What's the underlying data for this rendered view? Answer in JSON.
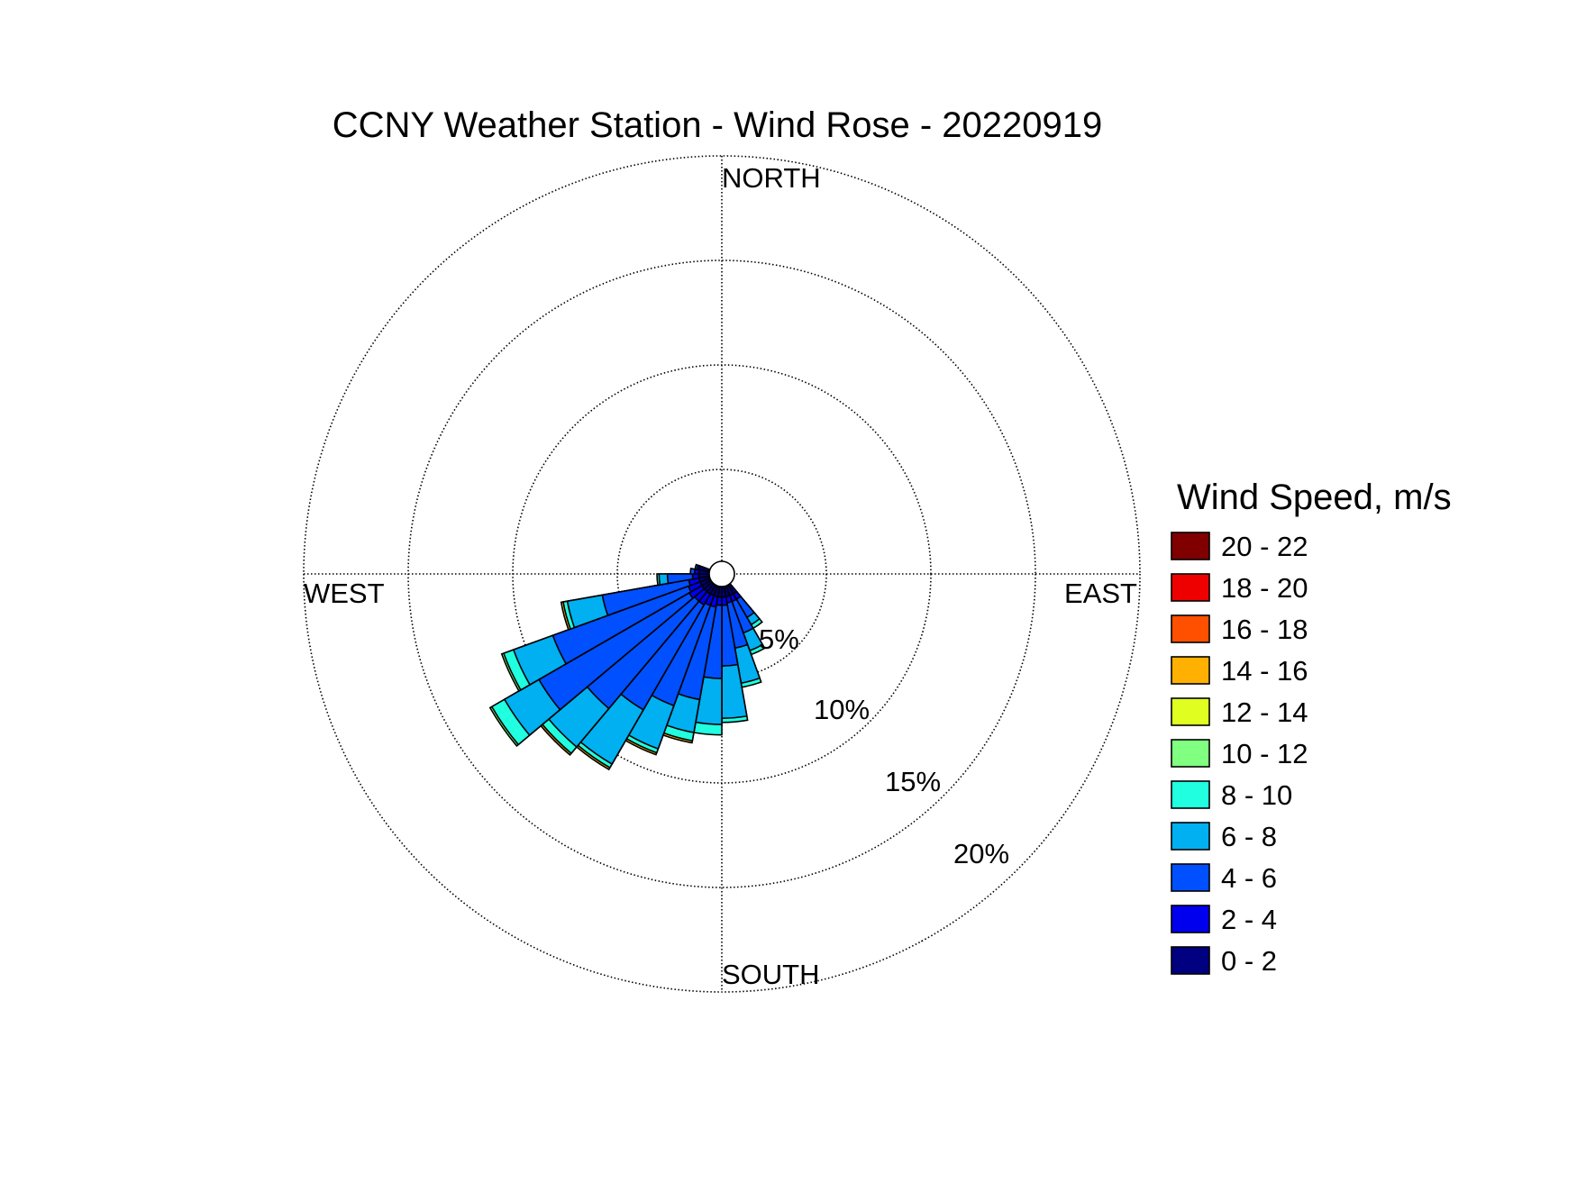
{
  "chart_data": {
    "type": "wind-rose",
    "title": "CCNY Weather Station - Wind Rose - 20220919",
    "directions": {
      "north": "NORTH",
      "east": "EAST",
      "south": "SOUTH",
      "west": "WEST"
    },
    "radial_ticks": [
      {
        "value": 5,
        "label": "5%"
      },
      {
        "value": 10,
        "label": "10%"
      },
      {
        "value": 15,
        "label": "15%"
      },
      {
        "value": 20,
        "label": "20%"
      }
    ],
    "rmax": 20,
    "legend": {
      "title": "Wind Speed, m/s",
      "bins": [
        {
          "label": "20 - 22",
          "color": "#800000"
        },
        {
          "label": "18 - 20",
          "color": "#ee0000"
        },
        {
          "label": "16 - 18",
          "color": "#ff5000"
        },
        {
          "label": "14 - 16",
          "color": "#ffb000"
        },
        {
          "label": "12 - 14",
          "color": "#e0ff20"
        },
        {
          "label": "10 - 12",
          "color": "#80ff80"
        },
        {
          "label": "8 - 10",
          "color": "#20ffe0"
        },
        {
          "label": "6 - 8",
          "color": "#00b0f0"
        },
        {
          "label": "4 - 6",
          "color": "#0050ff"
        },
        {
          "label": "2 - 4",
          "color": "#0000ee"
        },
        {
          "label": "0 - 2",
          "color": "#000080"
        }
      ]
    },
    "sector_width_deg": 10,
    "sectors": [
      {
        "direction_deg": 145,
        "cumulative": [
          0.5,
          0.8,
          1.8,
          2.2,
          2.4,
          2.4,
          2.4,
          2.4,
          2.4,
          2.4,
          2.4
        ]
      },
      {
        "direction_deg": 155,
        "cumulative": [
          0.5,
          0.8,
          2.4,
          3.3,
          3.5,
          3.5,
          3.5,
          3.5,
          3.5,
          3.5,
          3.5
        ]
      },
      {
        "direction_deg": 165,
        "cumulative": [
          0.5,
          0.8,
          3.0,
          4.7,
          4.9,
          4.9,
          4.9,
          4.9,
          4.9,
          4.9,
          4.9
        ]
      },
      {
        "direction_deg": 175,
        "cumulative": [
          0.5,
          0.9,
          3.8,
          6.3,
          6.5,
          6.5,
          6.5,
          6.5,
          6.5,
          6.5,
          6.5
        ]
      },
      {
        "direction_deg": 185,
        "cumulative": [
          0.5,
          0.9,
          4.4,
          6.6,
          7.1,
          7.1,
          7.1,
          7.1,
          7.1,
          7.1,
          7.1
        ]
      },
      {
        "direction_deg": 195,
        "cumulative": [
          0.5,
          1.0,
          5.5,
          7.1,
          7.5,
          7.5,
          7.5,
          7.6,
          7.6,
          7.6,
          7.6
        ]
      },
      {
        "direction_deg": 205,
        "cumulative": [
          0.5,
          1.0,
          6.1,
          8.3,
          8.5,
          8.5,
          8.5,
          8.6,
          8.6,
          8.6,
          8.6
        ]
      },
      {
        "direction_deg": 215,
        "cumulative": [
          0.5,
          1.1,
          6.9,
          9.9,
          10.1,
          10.1,
          10.1,
          10.2,
          10.2,
          10.2,
          10.2
        ]
      },
      {
        "direction_deg": 225,
        "cumulative": [
          0.5,
          1.1,
          7.8,
          10.2,
          10.6,
          10.6,
          10.6,
          10.7,
          10.7,
          10.7,
          10.7
        ]
      },
      {
        "direction_deg": 235,
        "cumulative": [
          0.5,
          1.2,
          9.5,
          11.4,
          12.1,
          12.2,
          12.2,
          12.2,
          12.2,
          12.2,
          12.2
        ]
      },
      {
        "direction_deg": 245,
        "cumulative": [
          0.5,
          1.1,
          8.0,
          10.0,
          10.5,
          10.6,
          10.6,
          10.6,
          10.6,
          10.6,
          10.6
        ]
      },
      {
        "direction_deg": 255,
        "cumulative": [
          0.5,
          1.0,
          5.2,
          6.9,
          7.1,
          7.1,
          7.1,
          7.2,
          7.2,
          7.2,
          7.2
        ]
      },
      {
        "direction_deg": 265,
        "cumulative": [
          0.5,
          0.8,
          2.0,
          2.4,
          2.5,
          2.5,
          2.5,
          2.5,
          2.5,
          2.5,
          2.5
        ]
      },
      {
        "direction_deg": 275,
        "cumulative": [
          0.5,
          0.7,
          0.9,
          0.9,
          0.9,
          0.9,
          0.9,
          0.9,
          0.9,
          0.9,
          0.9
        ]
      },
      {
        "direction_deg": 285,
        "cumulative": [
          0.5,
          0.6,
          0.7,
          0.7,
          0.7,
          0.7,
          0.7,
          0.7,
          0.7,
          0.7,
          0.7
        ]
      }
    ],
    "grid": true,
    "legend_position": "right"
  }
}
